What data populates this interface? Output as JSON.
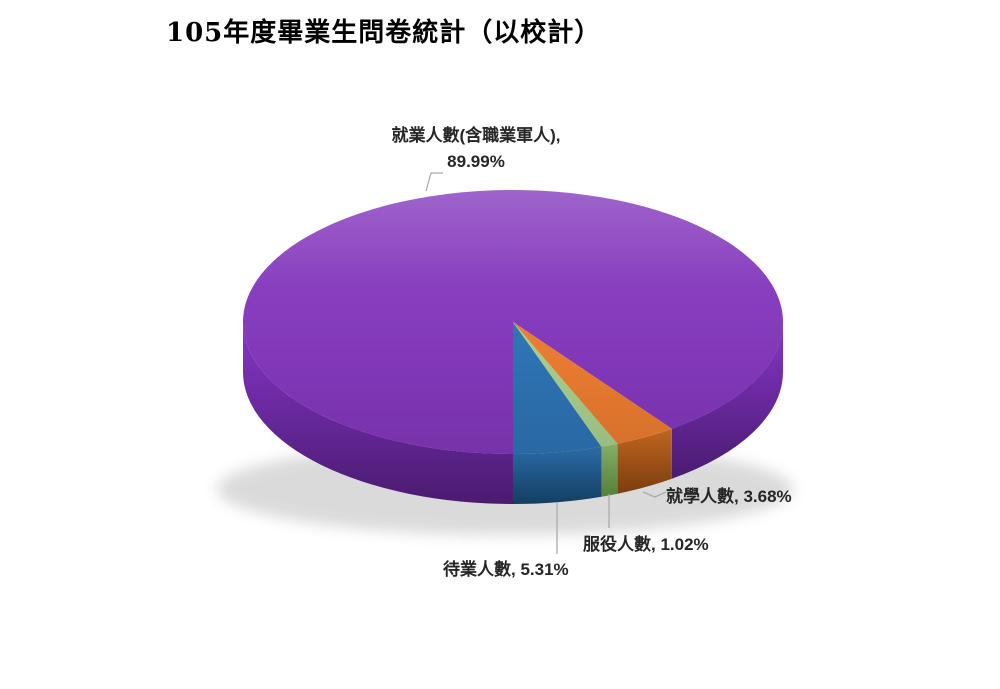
{
  "title": "105年度畢業生問卷統計（以校計）",
  "chart_data": {
    "type": "pie",
    "style": "3d",
    "title": "105年度畢業生問卷統計（以校計）",
    "unit": "%",
    "legend": "none",
    "data_labels": "category name + percent, outside with gray leader lines",
    "slices": [
      {
        "label": "就業人數(含職業軍人)",
        "value": 89.99,
        "display": "就業人數(含職業軍人), 89.99%",
        "color": "#8438BC",
        "side_top": "#8636C8",
        "side_bottom": "#4A1B70"
      },
      {
        "label": "待業人數",
        "value": 5.31,
        "display": "待業人數, 5.31%",
        "color": "#2E74B5",
        "side_top": "#2A6BA6",
        "side_bottom": "#143E62"
      },
      {
        "label": "服役人數",
        "value": 1.02,
        "display": "服役人數, 1.02%",
        "color": "#A9D18E",
        "side_top": "#86AE66",
        "side_bottom": "#54803B"
      },
      {
        "label": "就學人數",
        "value": 3.68,
        "display": "就學人數, 3.68%",
        "color": "#ED7D31",
        "side_top": "#C0661F",
        "side_bottom": "#7C3D0E"
      }
    ],
    "layout_note": "small slices fan out at the bottom-right of the pie; blue slice left edge points straight down"
  },
  "labels": {
    "employed_name": "就業人數(含職業軍人),",
    "employed_value": "89.99%",
    "unemployed": "待業人數, 5.31%",
    "service": "服役人數, 1.02%",
    "studying": "就學人數, 3.68%"
  },
  "colors": {
    "background": "#FFFFFF",
    "leader_line": "#ABABAB",
    "label_text": "#262626",
    "title_text": "#000000"
  }
}
